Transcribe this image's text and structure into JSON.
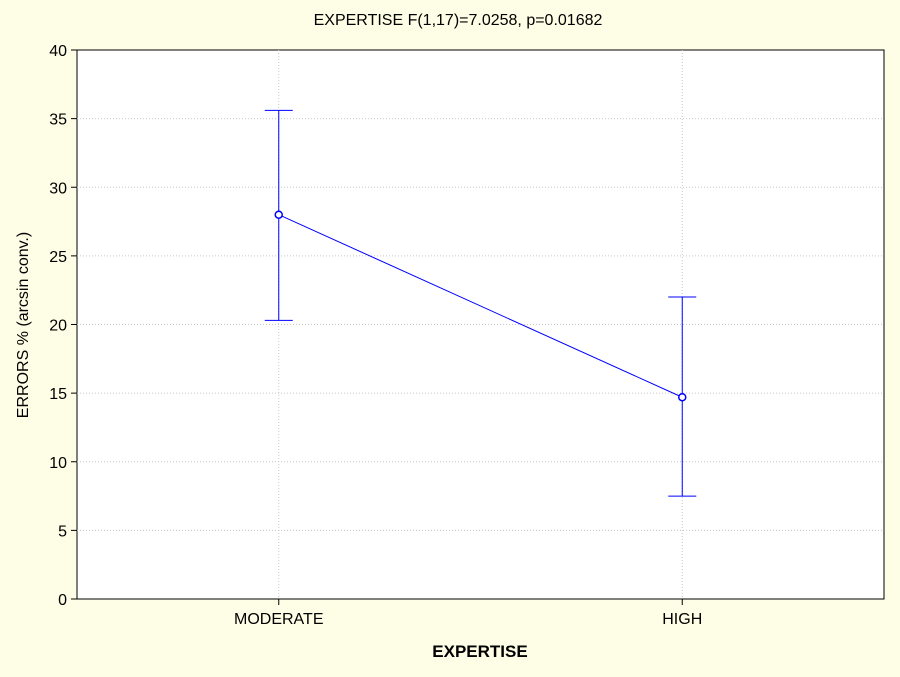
{
  "chart_data": {
    "type": "line",
    "title": "EXPERTISE  F(1,17)=7.0258, p=0.01682",
    "xlabel": "EXPERTISE",
    "ylabel": "ERRORS % (arcsin conv.)",
    "categories": [
      "MODERATE",
      "HIGH"
    ],
    "series": [
      {
        "values": [
          28.0,
          14.7
        ],
        "error_low": [
          20.3,
          7.5
        ],
        "error_high": [
          35.6,
          22.0
        ]
      }
    ],
    "ylim": [
      0,
      40
    ],
    "yticks": [
      0,
      5,
      10,
      15,
      20,
      25,
      30,
      35,
      40
    ],
    "grid": true,
    "colors": {
      "background": "#fefee6",
      "plot_background": "#ffffff",
      "series": "#0000ff",
      "grid": "#c8c8c8"
    }
  }
}
